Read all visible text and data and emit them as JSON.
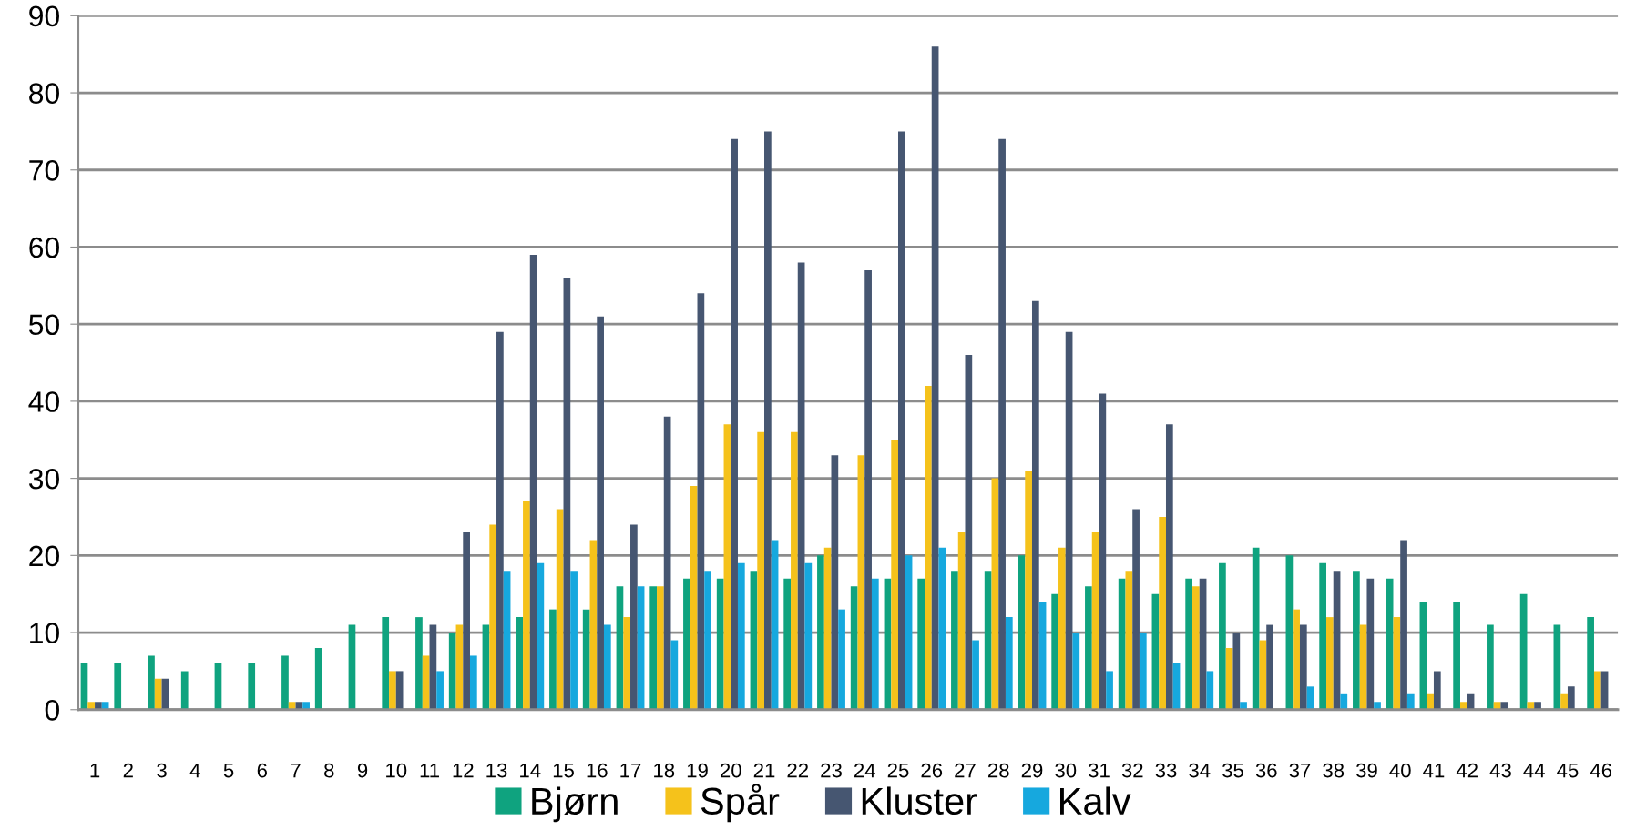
{
  "chart_data": {
    "type": "bar",
    "categories": [
      "1",
      "2",
      "3",
      "4",
      "5",
      "6",
      "7",
      "8",
      "9",
      "10",
      "11",
      "12",
      "13",
      "14",
      "15",
      "16",
      "17",
      "18",
      "19",
      "20",
      "21",
      "22",
      "23",
      "24",
      "25",
      "26",
      "27",
      "28",
      "29",
      "30",
      "31",
      "32",
      "33",
      "34",
      "35",
      "36",
      "37",
      "38",
      "39",
      "40",
      "41",
      "42",
      "43",
      "44",
      "45",
      "46"
    ],
    "series": [
      {
        "name": "Bjørn",
        "color": "#0fa37f",
        "values": [
          6,
          6,
          7,
          5,
          6,
          6,
          7,
          8,
          11,
          12,
          12,
          10,
          11,
          12,
          13,
          13,
          16,
          16,
          17,
          17,
          18,
          17,
          20,
          16,
          17,
          17,
          18,
          18,
          20,
          15,
          16,
          17,
          15,
          17,
          19,
          21,
          20,
          19,
          18,
          17,
          14,
          14,
          11,
          15,
          11,
          12
        ]
      },
      {
        "name": "Spår",
        "color": "#f5c21b",
        "values": [
          1,
          0,
          4,
          0,
          0,
          0,
          1,
          0,
          0,
          5,
          7,
          11,
          24,
          27,
          26,
          22,
          12,
          16,
          29,
          37,
          36,
          36,
          21,
          33,
          35,
          42,
          23,
          30,
          31,
          21,
          23,
          18,
          25,
          16,
          8,
          9,
          13,
          12,
          11,
          12,
          2,
          1,
          1,
          1,
          2,
          5
        ]
      },
      {
        "name": "Kluster",
        "color": "#465671",
        "values": [
          1,
          0,
          4,
          0,
          0,
          0,
          1,
          0,
          0,
          5,
          11,
          23,
          49,
          59,
          56,
          51,
          24,
          38,
          54,
          74,
          75,
          58,
          33,
          57,
          75,
          86,
          46,
          74,
          53,
          49,
          41,
          26,
          37,
          17,
          10,
          11,
          11,
          18,
          17,
          22,
          5,
          2,
          1,
          1,
          3,
          5
        ]
      },
      {
        "name": "Kalv",
        "color": "#16a8de",
        "values": [
          1,
          0,
          0,
          0,
          0,
          0,
          1,
          0,
          0,
          0,
          5,
          7,
          18,
          19,
          18,
          11,
          16,
          9,
          18,
          19,
          22,
          19,
          13,
          17,
          20,
          21,
          9,
          12,
          14,
          10,
          5,
          10,
          6,
          5,
          1,
          0,
          3,
          2,
          1,
          2,
          0,
          0,
          0,
          0,
          0,
          0
        ]
      }
    ],
    "ylim": [
      0,
      90
    ],
    "yticks": [
      0,
      10,
      20,
      30,
      40,
      50,
      60,
      70,
      80,
      90
    ],
    "grid": "y",
    "legend": "bottom"
  }
}
